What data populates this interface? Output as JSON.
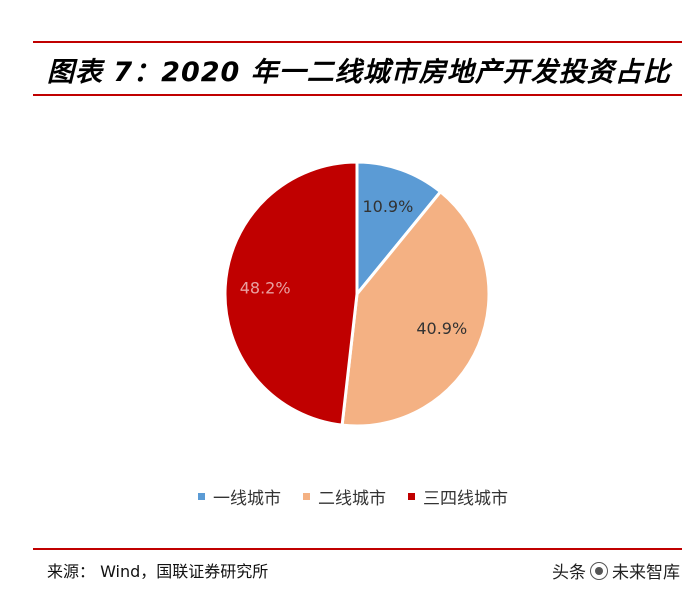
{
  "header": {
    "title": "图表 7：2020 年一二线城市房地产开发投资占比"
  },
  "chart_data": {
    "type": "pie",
    "title": "图表 7：2020 年一二线城市房地产开发投资占比",
    "start_angle_deg": 0,
    "slices": [
      {
        "name": "一线城市",
        "value": 10.9,
        "label": "10.9%",
        "color": "#5b9bd5",
        "label_color": "#333333"
      },
      {
        "name": "二线城市",
        "value": 40.9,
        "label": "40.9%",
        "color": "#f4b183",
        "label_color": "#333333"
      },
      {
        "name": "三四线城市",
        "value": 48.2,
        "label": "48.2%",
        "color": "#c00000",
        "label_color": "#e8a0a0"
      }
    ],
    "legend_position": "bottom"
  },
  "footer": {
    "source": "来源：  Wind，国联证券研究所",
    "watermark_left": "头条",
    "watermark_right": "未来智库"
  },
  "colors": {
    "accent": "#c00000"
  }
}
